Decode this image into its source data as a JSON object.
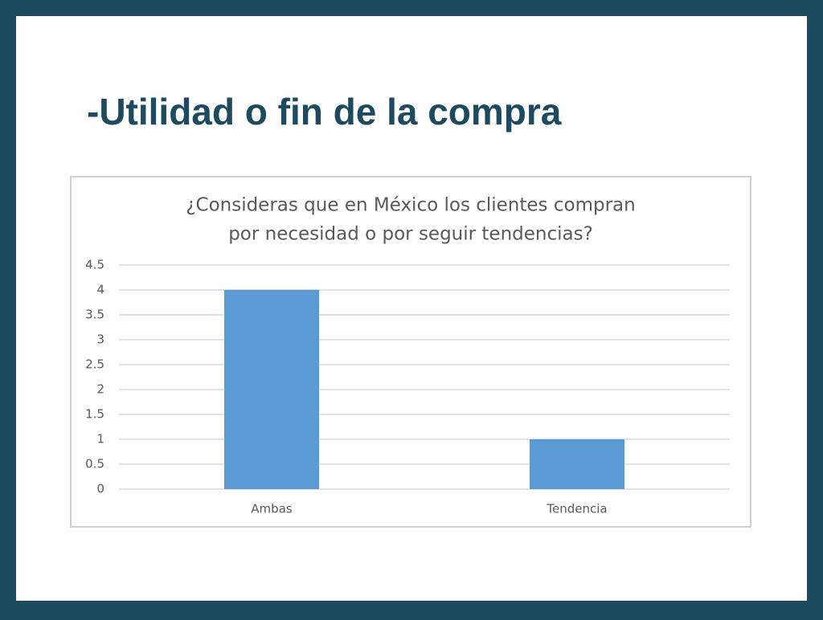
{
  "slide_title": "-Utilidad o fin de la compra",
  "chart_data": {
    "type": "bar",
    "title": [
      "¿Consideras que en México los clientes compran",
      "por necesidad o por seguir tendencias?"
    ],
    "categories": [
      "Ambas",
      "Tendencia"
    ],
    "values": [
      4,
      1
    ],
    "color": "#5b9bd5",
    "ylim": [
      0,
      4.5
    ],
    "yticks": [
      0,
      0.5,
      1,
      1.5,
      2,
      2.5,
      3,
      3.5,
      4,
      4.5
    ],
    "grid": true
  }
}
